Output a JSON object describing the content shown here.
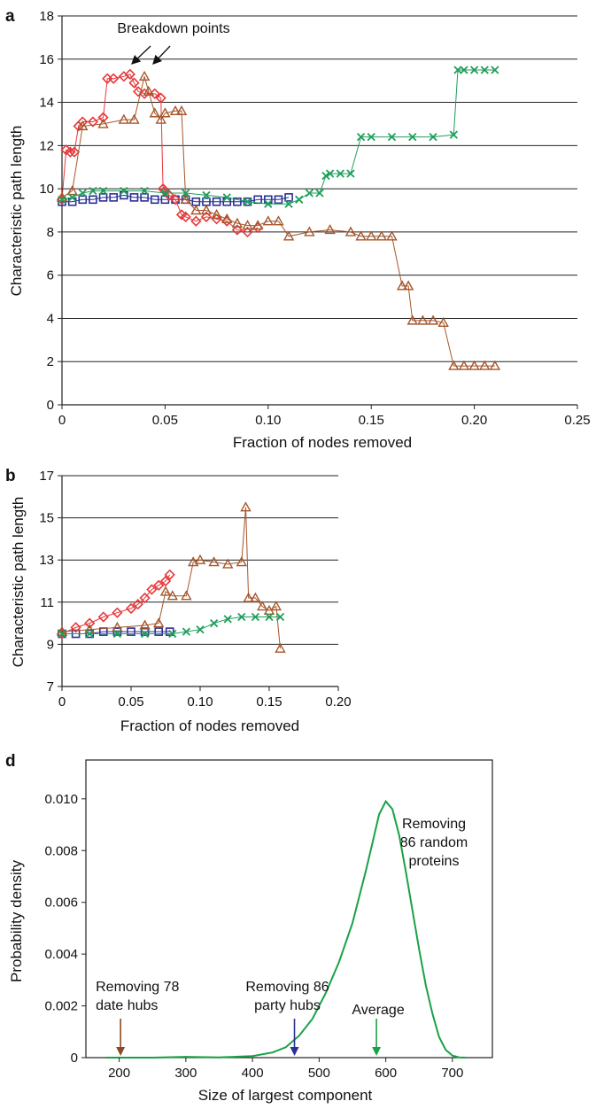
{
  "chart_data": [
    {
      "panel": "a",
      "type": "scatter",
      "xlabel": "Fraction of nodes removed",
      "ylabel": "Characteristic path length",
      "xlim": [
        0,
        0.25
      ],
      "ylim": [
        0,
        18
      ],
      "xticks": [
        "0",
        "0.05",
        "0.10",
        "0.15",
        "0.20",
        "0.25"
      ],
      "yticks": [
        "0",
        "2",
        "4",
        "6",
        "8",
        "10",
        "12",
        "14",
        "16",
        "18"
      ],
      "grid": "horizontal",
      "annotation": "Breakdown points",
      "series": [
        {
          "marker": "square",
          "color": "#2b2f94",
          "x": [
            0,
            0.005,
            0.01,
            0.015,
            0.02,
            0.025,
            0.03,
            0.035,
            0.04,
            0.045,
            0.05,
            0.055,
            0.06,
            0.065,
            0.07,
            0.075,
            0.08,
            0.085,
            0.09,
            0.095,
            0.1,
            0.105,
            0.11
          ],
          "y": [
            9.4,
            9.4,
            9.5,
            9.5,
            9.6,
            9.6,
            9.7,
            9.6,
            9.6,
            9.5,
            9.5,
            9.5,
            9.5,
            9.4,
            9.4,
            9.4,
            9.4,
            9.4,
            9.4,
            9.5,
            9.5,
            9.5,
            9.6
          ]
        },
        {
          "marker": "diamond",
          "color": "#e8383b",
          "x": [
            0,
            0.002,
            0.004,
            0.006,
            0.008,
            0.01,
            0.015,
            0.02,
            0.022,
            0.025,
            0.03,
            0.033,
            0.035,
            0.037,
            0.04,
            0.045,
            0.048,
            0.049,
            0.05,
            0.052,
            0.055,
            0.058,
            0.06,
            0.065,
            0.07,
            0.075,
            0.08,
            0.085,
            0.09,
            0.095
          ],
          "y": [
            9.5,
            11.8,
            11.7,
            11.7,
            12.9,
            13.1,
            13.1,
            13.3,
            15.1,
            15.1,
            15.2,
            15.3,
            14.9,
            14.5,
            14.4,
            14.4,
            14.2,
            10.0,
            9.9,
            9.7,
            9.5,
            8.8,
            8.7,
            8.5,
            8.7,
            8.6,
            8.5,
            8.1,
            8.0,
            8.2
          ]
        },
        {
          "marker": "triangle",
          "color": "#a5562a",
          "x": [
            0,
            0.005,
            0.01,
            0.02,
            0.03,
            0.035,
            0.04,
            0.042,
            0.045,
            0.048,
            0.05,
            0.055,
            0.058,
            0.06,
            0.065,
            0.07,
            0.075,
            0.08,
            0.085,
            0.09,
            0.095,
            0.1,
            0.105,
            0.11,
            0.12,
            0.13,
            0.14,
            0.145,
            0.15,
            0.155,
            0.16,
            0.165,
            0.168,
            0.17,
            0.175,
            0.18,
            0.185,
            0.19,
            0.195,
            0.2,
            0.205,
            0.21
          ],
          "y": [
            9.6,
            9.9,
            12.9,
            13.0,
            13.2,
            13.2,
            15.2,
            14.5,
            13.5,
            13.2,
            13.5,
            13.6,
            13.6,
            9.5,
            9.0,
            9.0,
            8.8,
            8.6,
            8.4,
            8.3,
            8.3,
            8.5,
            8.5,
            7.8,
            8.0,
            8.1,
            8.0,
            7.8,
            7.8,
            7.8,
            7.8,
            5.5,
            5.5,
            3.9,
            3.9,
            3.9,
            3.8,
            1.8,
            1.8,
            1.8,
            1.8,
            1.8
          ]
        },
        {
          "marker": "cross",
          "color": "#1f9e5a",
          "x": [
            0,
            0.005,
            0.01,
            0.015,
            0.02,
            0.03,
            0.04,
            0.05,
            0.06,
            0.07,
            0.08,
            0.09,
            0.1,
            0.11,
            0.115,
            0.12,
            0.125,
            0.128,
            0.13,
            0.135,
            0.14,
            0.145,
            0.15,
            0.16,
            0.17,
            0.18,
            0.19,
            0.192,
            0.195,
            0.2,
            0.205,
            0.21
          ],
          "y": [
            9.5,
            9.6,
            9.8,
            9.9,
            9.9,
            9.9,
            9.9,
            9.8,
            9.8,
            9.7,
            9.6,
            9.4,
            9.3,
            9.3,
            9.5,
            9.8,
            9.8,
            10.6,
            10.7,
            10.7,
            10.7,
            12.4,
            12.4,
            12.4,
            12.4,
            12.4,
            12.5,
            15.5,
            15.5,
            15.5,
            15.5,
            15.5
          ]
        }
      ]
    },
    {
      "panel": "b",
      "type": "scatter",
      "xlabel": "Fraction of nodes removed",
      "ylabel": "Characteristic path length",
      "xlim": [
        0,
        0.2
      ],
      "ylim": [
        7,
        17
      ],
      "xticks": [
        "0",
        "0.05",
        "0.10",
        "0.15",
        "0.20"
      ],
      "yticks": [
        "7",
        "9",
        "11",
        "13",
        "15",
        "17"
      ],
      "grid": "horizontal",
      "series": [
        {
          "marker": "square",
          "color": "#2b2f94",
          "x": [
            0,
            0.01,
            0.02,
            0.03,
            0.04,
            0.05,
            0.06,
            0.07,
            0.078
          ],
          "y": [
            9.5,
            9.5,
            9.5,
            9.6,
            9.6,
            9.6,
            9.6,
            9.6,
            9.6
          ]
        },
        {
          "marker": "diamond",
          "color": "#e8383b",
          "x": [
            0,
            0.01,
            0.02,
            0.03,
            0.04,
            0.05,
            0.055,
            0.06,
            0.065,
            0.07,
            0.075,
            0.078
          ],
          "y": [
            9.5,
            9.8,
            10.0,
            10.3,
            10.5,
            10.7,
            10.9,
            11.2,
            11.6,
            11.8,
            12.0,
            12.3
          ]
        },
        {
          "marker": "triangle",
          "color": "#a5562a",
          "x": [
            0,
            0.02,
            0.04,
            0.06,
            0.07,
            0.075,
            0.08,
            0.09,
            0.095,
            0.1,
            0.11,
            0.12,
            0.13,
            0.133,
            0.135,
            0.14,
            0.145,
            0.15,
            0.155,
            0.158
          ],
          "y": [
            9.6,
            9.7,
            9.8,
            9.9,
            10.0,
            11.5,
            11.3,
            11.3,
            12.9,
            13.0,
            12.9,
            12.8,
            12.9,
            15.5,
            11.2,
            11.2,
            10.8,
            10.6,
            10.8,
            8.8
          ]
        },
        {
          "marker": "cross",
          "color": "#1f9e5a",
          "x": [
            0,
            0.02,
            0.04,
            0.06,
            0.08,
            0.09,
            0.1,
            0.11,
            0.12,
            0.13,
            0.14,
            0.15,
            0.158
          ],
          "y": [
            9.5,
            9.5,
            9.5,
            9.5,
            9.5,
            9.6,
            9.7,
            10.0,
            10.2,
            10.3,
            10.3,
            10.3,
            10.3
          ]
        }
      ]
    },
    {
      "panel": "d",
      "type": "line",
      "xlabel": "Size of largest component",
      "ylabel": "Probability density",
      "xlim": [
        150,
        760
      ],
      "ylim": [
        0,
        0.0115
      ],
      "xticks": [
        "200",
        "300",
        "400",
        "500",
        "600",
        "700"
      ],
      "yticks": [
        "0",
        "0.002",
        "0.004",
        "0.006",
        "0.008",
        "0.010"
      ],
      "grid": "none",
      "series": [
        {
          "color": "#1aa146",
          "x": [
            180,
            250,
            300,
            350,
            400,
            430,
            450,
            470,
            490,
            510,
            530,
            550,
            570,
            580,
            590,
            600,
            610,
            620,
            630,
            640,
            650,
            660,
            670,
            680,
            690,
            700,
            710,
            720
          ],
          "y": [
            0,
            0,
            3e-05,
            1e-05,
            6e-05,
            0.0002,
            0.0004,
            0.00085,
            0.0015,
            0.0025,
            0.0037,
            0.0052,
            0.0072,
            0.0083,
            0.0094,
            0.0099,
            0.0096,
            0.0086,
            0.0072,
            0.0057,
            0.0042,
            0.0028,
            0.0017,
            0.0008,
            0.0003,
            8e-05,
            1e-05,
            0
          ]
        }
      ],
      "annotations": [
        {
          "text": [
            "Removing 78",
            "date hubs"
          ],
          "x": 202,
          "color": "#8a4a22"
        },
        {
          "text": [
            "Removing 86",
            "party hubs"
          ],
          "x": 463,
          "color": "#2b2f94"
        },
        {
          "text": [
            "Average"
          ],
          "x": 586,
          "color": "#1aa146"
        },
        {
          "text": [
            "Removing",
            "86 random",
            "proteins"
          ],
          "x": null,
          "color": null
        }
      ]
    }
  ],
  "panel_letters": {
    "a": "a",
    "b": "b",
    "d": "d"
  }
}
